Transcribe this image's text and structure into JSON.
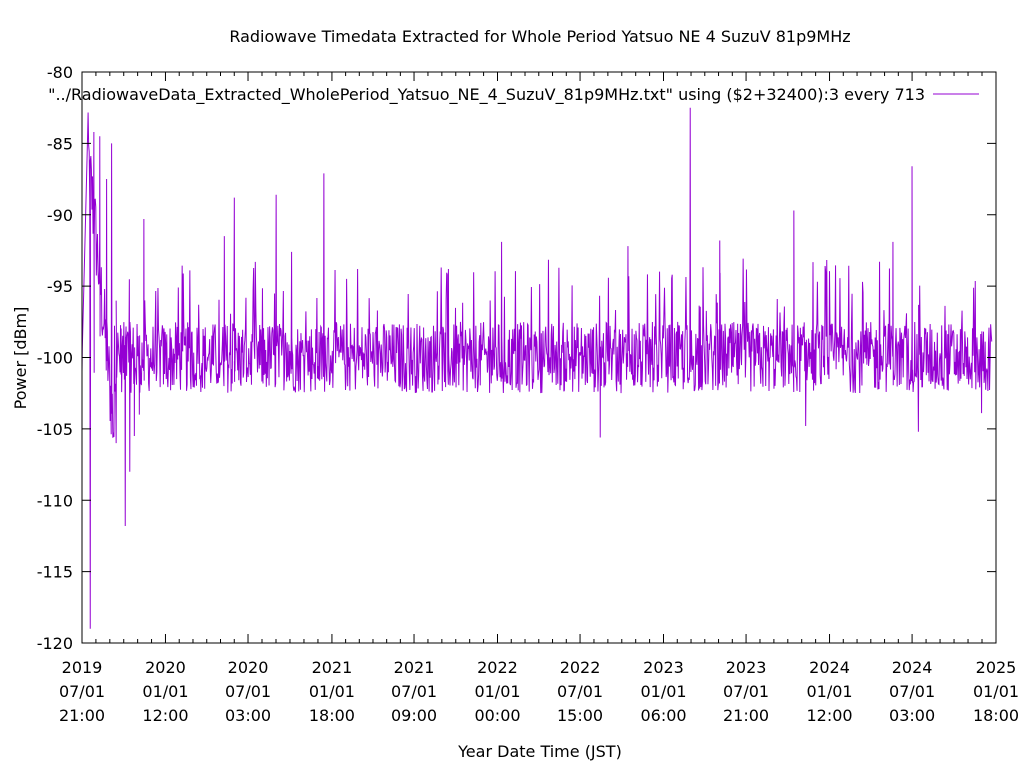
{
  "chart_data": {
    "type": "line",
    "title": "Radiowave Timedata Extracted for Whole Period Yatsuo NE 4 SuzuV 81p9MHz",
    "xlabel": "Year Date Time (JST)",
    "ylabel": "Power [dBm]",
    "ylim": [
      -120,
      -80
    ],
    "yticks": [
      -80,
      -85,
      -90,
      -95,
      -100,
      -105,
      -110,
      -115,
      -120
    ],
    "xlim": [
      "2019-07-01 21:00",
      "2025-01-01 18:00"
    ],
    "xticks": [
      {
        "value": "2019-07-01 21:00",
        "l1": "2019",
        "l2": "07/01",
        "l3": "21:00"
      },
      {
        "value": "2020-01-01 12:00",
        "l1": "2020",
        "l2": "01/01",
        "l3": "12:00"
      },
      {
        "value": "2020-07-01 03:00",
        "l1": "2020",
        "l2": "07/01",
        "l3": "03:00"
      },
      {
        "value": "2021-01-01 18:00",
        "l1": "2021",
        "l2": "01/01",
        "l3": "18:00"
      },
      {
        "value": "2021-07-01 09:00",
        "l1": "2021",
        "l2": "07/01",
        "l3": "09:00"
      },
      {
        "value": "2022-01-01 00:00",
        "l1": "2022",
        "l2": "01/01",
        "l3": "00:00"
      },
      {
        "value": "2022-07-01 15:00",
        "l1": "2022",
        "l2": "07/01",
        "l3": "15:00"
      },
      {
        "value": "2023-01-01 06:00",
        "l1": "2023",
        "l2": "01/01",
        "l3": "06:00"
      },
      {
        "value": "2023-07-01 21:00",
        "l1": "2023",
        "l2": "07/01",
        "l3": "21:00"
      },
      {
        "value": "2024-01-01 12:00",
        "l1": "2024",
        "l2": "01/01",
        "l3": "12:00"
      },
      {
        "value": "2024-07-01 03:00",
        "l1": "2024",
        "l2": "07/01",
        "l3": "03:00"
      },
      {
        "value": "2025-01-01 18:00",
        "l1": "2025",
        "l2": "01/01",
        "l3": "18:00"
      }
    ],
    "grid": false,
    "legend_position": "top-right",
    "series": [
      {
        "name": "\"../RadiowaveData_Extracted_WholePeriod_Yatsuo_NE_4_SuzuV_81p9MHz.txt\" using ($2+32400):3 every 713",
        "color": "#9400d3",
        "baseline": -100,
        "key_points": [
          {
            "x": "2019-07-01 21:00",
            "y": -101
          },
          {
            "x": "2019-07-20 00:00",
            "y": -119
          },
          {
            "x": "2019-07-28 00:00",
            "y": -84.2
          },
          {
            "x": "2019-08-10 00:00",
            "y": -84.5
          },
          {
            "x": "2019-08-25 00:00",
            "y": -87.5
          },
          {
            "x": "2019-09-05 00:00",
            "y": -85
          },
          {
            "x": "2019-09-15 00:00",
            "y": -106
          },
          {
            "x": "2019-09-25 00:00",
            "y": -100
          },
          {
            "x": "2019-10-05 00:00",
            "y": -111.8
          },
          {
            "x": "2019-10-15 00:00",
            "y": -108
          },
          {
            "x": "2019-10-25 00:00",
            "y": -105.5
          },
          {
            "x": "2019-11-05 00:00",
            "y": -104
          },
          {
            "x": "2019-11-15 00:00",
            "y": -90.3
          },
          {
            "x": "2020-06-01 00:00",
            "y": -88.8
          },
          {
            "x": "2020-05-10 00:00",
            "y": -91.5
          },
          {
            "x": "2020-09-01 00:00",
            "y": -88.6
          },
          {
            "x": "2020-10-05 00:00",
            "y": -92.6
          },
          {
            "x": "2020-12-15 00:00",
            "y": -87.1
          },
          {
            "x": "2021-09-15 00:00",
            "y": -93.8
          },
          {
            "x": "2022-01-10 00:00",
            "y": -91.9
          },
          {
            "x": "2022-08-15 00:00",
            "y": -105.6
          },
          {
            "x": "2022-10-15 00:00",
            "y": -92.2
          },
          {
            "x": "2023-03-01 00:00",
            "y": -82.5
          },
          {
            "x": "2023-05-05 00:00",
            "y": -91.8
          },
          {
            "x": "2023-10-15 00:00",
            "y": -89.7
          },
          {
            "x": "2023-11-10 00:00",
            "y": -104.8
          },
          {
            "x": "2024-05-20 00:00",
            "y": -91.9
          },
          {
            "x": "2024-07-01 00:00",
            "y": -86.6
          },
          {
            "x": "2024-07-15 00:00",
            "y": -105.2
          },
          {
            "x": "2024-12-01 00:00",
            "y": -103.9
          }
        ]
      }
    ]
  }
}
